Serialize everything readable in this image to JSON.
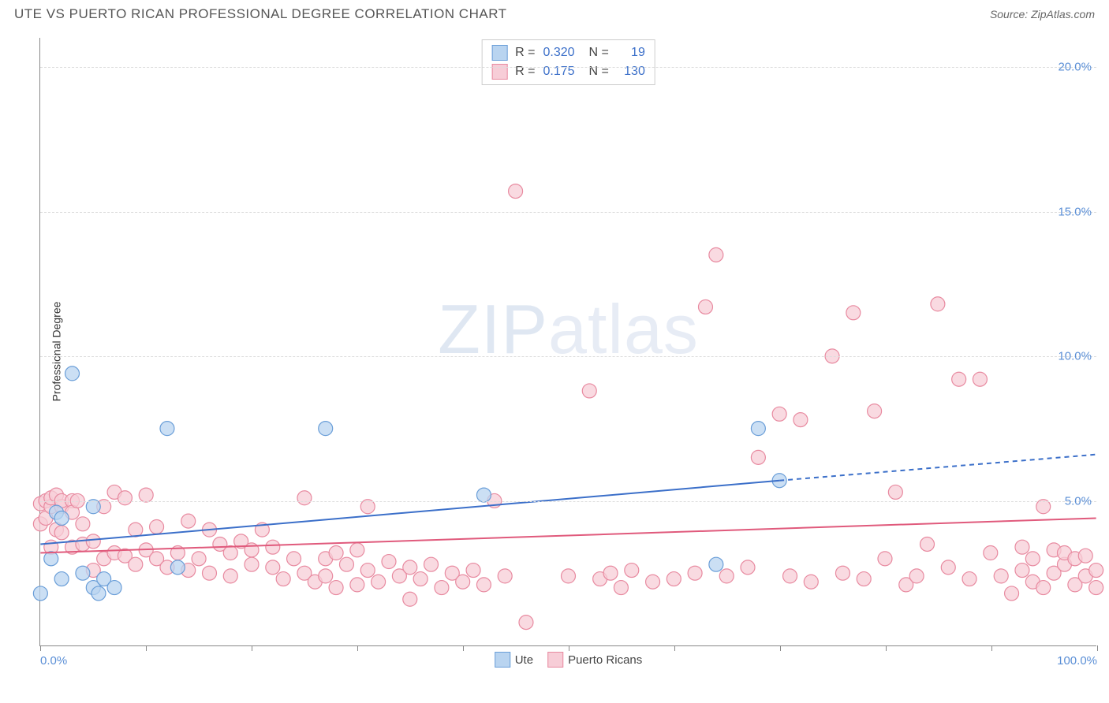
{
  "header": {
    "title": "UTE VS PUERTO RICAN PROFESSIONAL DEGREE CORRELATION CHART",
    "source": "Source: ZipAtlas.com"
  },
  "watermark": {
    "bold": "ZIP",
    "light": "atlas"
  },
  "chart": {
    "type": "scatter",
    "ylabel": "Professional Degree",
    "xlim": [
      0,
      100
    ],
    "ylim": [
      0,
      21
    ],
    "xticks": [
      0,
      10,
      20,
      30,
      40,
      50,
      60,
      70,
      80,
      90,
      100
    ],
    "xtick_labels_shown": {
      "0": "0.0%",
      "100": "100.0%"
    },
    "yticks": [
      5,
      10,
      15,
      20
    ],
    "ytick_labels": [
      "5.0%",
      "10.0%",
      "15.0%",
      "20.0%"
    ],
    "grid_color": "#dddddd",
    "background_color": "#ffffff",
    "marker_radius": 9,
    "marker_stroke_width": 1.2,
    "trend_line_width": 2,
    "series": {
      "ute": {
        "label": "Ute",
        "fill": "#b9d4f0",
        "stroke": "#6a9ed8",
        "trend_color": "#3b6fc9",
        "R": "0.320",
        "N": "19",
        "trend": {
          "x1": 0,
          "y1": 3.5,
          "x2_solid": 70,
          "y2_solid": 5.7,
          "x2": 100,
          "y2": 6.6
        },
        "points": [
          [
            0,
            1.8
          ],
          [
            1,
            3.0
          ],
          [
            1.5,
            4.6
          ],
          [
            2,
            2.3
          ],
          [
            2,
            4.4
          ],
          [
            3,
            9.4
          ],
          [
            4,
            2.5
          ],
          [
            5,
            2.0
          ],
          [
            5,
            4.8
          ],
          [
            5.5,
            1.8
          ],
          [
            6,
            2.3
          ],
          [
            7,
            2.0
          ],
          [
            12,
            7.5
          ],
          [
            13,
            2.7
          ],
          [
            27,
            7.5
          ],
          [
            42,
            5.2
          ],
          [
            64,
            2.8
          ],
          [
            68,
            7.5
          ],
          [
            70,
            5.7
          ]
        ]
      },
      "pr": {
        "label": "Puerto Ricans",
        "fill": "#f7cdd7",
        "stroke": "#e88aa0",
        "trend_color": "#e05a7c",
        "R": "0.175",
        "N": "130",
        "trend": {
          "x1": 0,
          "y1": 3.2,
          "x2_solid": 100,
          "y2_solid": 4.4,
          "x2": 100,
          "y2": 4.4
        },
        "points": [
          [
            0,
            4.9
          ],
          [
            0,
            4.2
          ],
          [
            0.5,
            5.0
          ],
          [
            0.5,
            4.4
          ],
          [
            1,
            3.4
          ],
          [
            1,
            4.8
          ],
          [
            1,
            5.1
          ],
          [
            1.5,
            5.2
          ],
          [
            1.5,
            4.0
          ],
          [
            2,
            4.8
          ],
          [
            2,
            5.0
          ],
          [
            2,
            3.9
          ],
          [
            3,
            5.0
          ],
          [
            3,
            3.4
          ],
          [
            3,
            4.6
          ],
          [
            3.5,
            5.0
          ],
          [
            4,
            3.5
          ],
          [
            4,
            4.2
          ],
          [
            5,
            2.6
          ],
          [
            5,
            3.6
          ],
          [
            6,
            4.8
          ],
          [
            6,
            3.0
          ],
          [
            7,
            5.3
          ],
          [
            7,
            3.2
          ],
          [
            8,
            5.1
          ],
          [
            8,
            3.1
          ],
          [
            9,
            4.0
          ],
          [
            9,
            2.8
          ],
          [
            10,
            5.2
          ],
          [
            10,
            3.3
          ],
          [
            11,
            4.1
          ],
          [
            11,
            3.0
          ],
          [
            12,
            2.7
          ],
          [
            13,
            3.2
          ],
          [
            14,
            4.3
          ],
          [
            14,
            2.6
          ],
          [
            15,
            3.0
          ],
          [
            16,
            4.0
          ],
          [
            16,
            2.5
          ],
          [
            17,
            3.5
          ],
          [
            18,
            3.2
          ],
          [
            18,
            2.4
          ],
          [
            19,
            3.6
          ],
          [
            20,
            2.8
          ],
          [
            20,
            3.3
          ],
          [
            21,
            4.0
          ],
          [
            22,
            2.7
          ],
          [
            22,
            3.4
          ],
          [
            23,
            2.3
          ],
          [
            24,
            3.0
          ],
          [
            25,
            5.1
          ],
          [
            25,
            2.5
          ],
          [
            26,
            2.2
          ],
          [
            27,
            3.0
          ],
          [
            27,
            2.4
          ],
          [
            28,
            3.2
          ],
          [
            28,
            2.0
          ],
          [
            29,
            2.8
          ],
          [
            30,
            3.3
          ],
          [
            30,
            2.1
          ],
          [
            31,
            4.8
          ],
          [
            31,
            2.6
          ],
          [
            32,
            2.2
          ],
          [
            33,
            2.9
          ],
          [
            34,
            2.4
          ],
          [
            35,
            1.6
          ],
          [
            35,
            2.7
          ],
          [
            36,
            2.3
          ],
          [
            37,
            2.8
          ],
          [
            38,
            2.0
          ],
          [
            39,
            2.5
          ],
          [
            40,
            2.2
          ],
          [
            41,
            2.6
          ],
          [
            42,
            2.1
          ],
          [
            43,
            5.0
          ],
          [
            44,
            2.4
          ],
          [
            45,
            15.7
          ],
          [
            46,
            0.8
          ],
          [
            50,
            2.4
          ],
          [
            52,
            8.8
          ],
          [
            53,
            2.3
          ],
          [
            54,
            2.5
          ],
          [
            55,
            2.0
          ],
          [
            56,
            2.6
          ],
          [
            58,
            2.2
          ],
          [
            60,
            2.3
          ],
          [
            62,
            2.5
          ],
          [
            63,
            11.7
          ],
          [
            64,
            13.5
          ],
          [
            65,
            2.4
          ],
          [
            67,
            2.7
          ],
          [
            68,
            6.5
          ],
          [
            70,
            8.0
          ],
          [
            71,
            2.4
          ],
          [
            72,
            7.8
          ],
          [
            73,
            2.2
          ],
          [
            75,
            10.0
          ],
          [
            76,
            2.5
          ],
          [
            77,
            11.5
          ],
          [
            78,
            2.3
          ],
          [
            79,
            8.1
          ],
          [
            80,
            3.0
          ],
          [
            81,
            5.3
          ],
          [
            82,
            2.1
          ],
          [
            83,
            2.4
          ],
          [
            84,
            3.5
          ],
          [
            85,
            11.8
          ],
          [
            86,
            2.7
          ],
          [
            87,
            9.2
          ],
          [
            88,
            2.3
          ],
          [
            89,
            9.2
          ],
          [
            90,
            3.2
          ],
          [
            91,
            2.4
          ],
          [
            92,
            1.8
          ],
          [
            93,
            3.4
          ],
          [
            93,
            2.6
          ],
          [
            94,
            3.0
          ],
          [
            94,
            2.2
          ],
          [
            95,
            2.0
          ],
          [
            95,
            4.8
          ],
          [
            96,
            3.3
          ],
          [
            96,
            2.5
          ],
          [
            97,
            2.8
          ],
          [
            97,
            3.2
          ],
          [
            98,
            2.1
          ],
          [
            98,
            3.0
          ],
          [
            99,
            2.4
          ],
          [
            99,
            3.1
          ],
          [
            100,
            2.6
          ],
          [
            100,
            2.0
          ]
        ]
      }
    }
  },
  "legend_top": {
    "R_label": "R =",
    "N_label": "N ="
  },
  "colors": {
    "axis_text": "#5b8fd6",
    "title_text": "#555555"
  }
}
